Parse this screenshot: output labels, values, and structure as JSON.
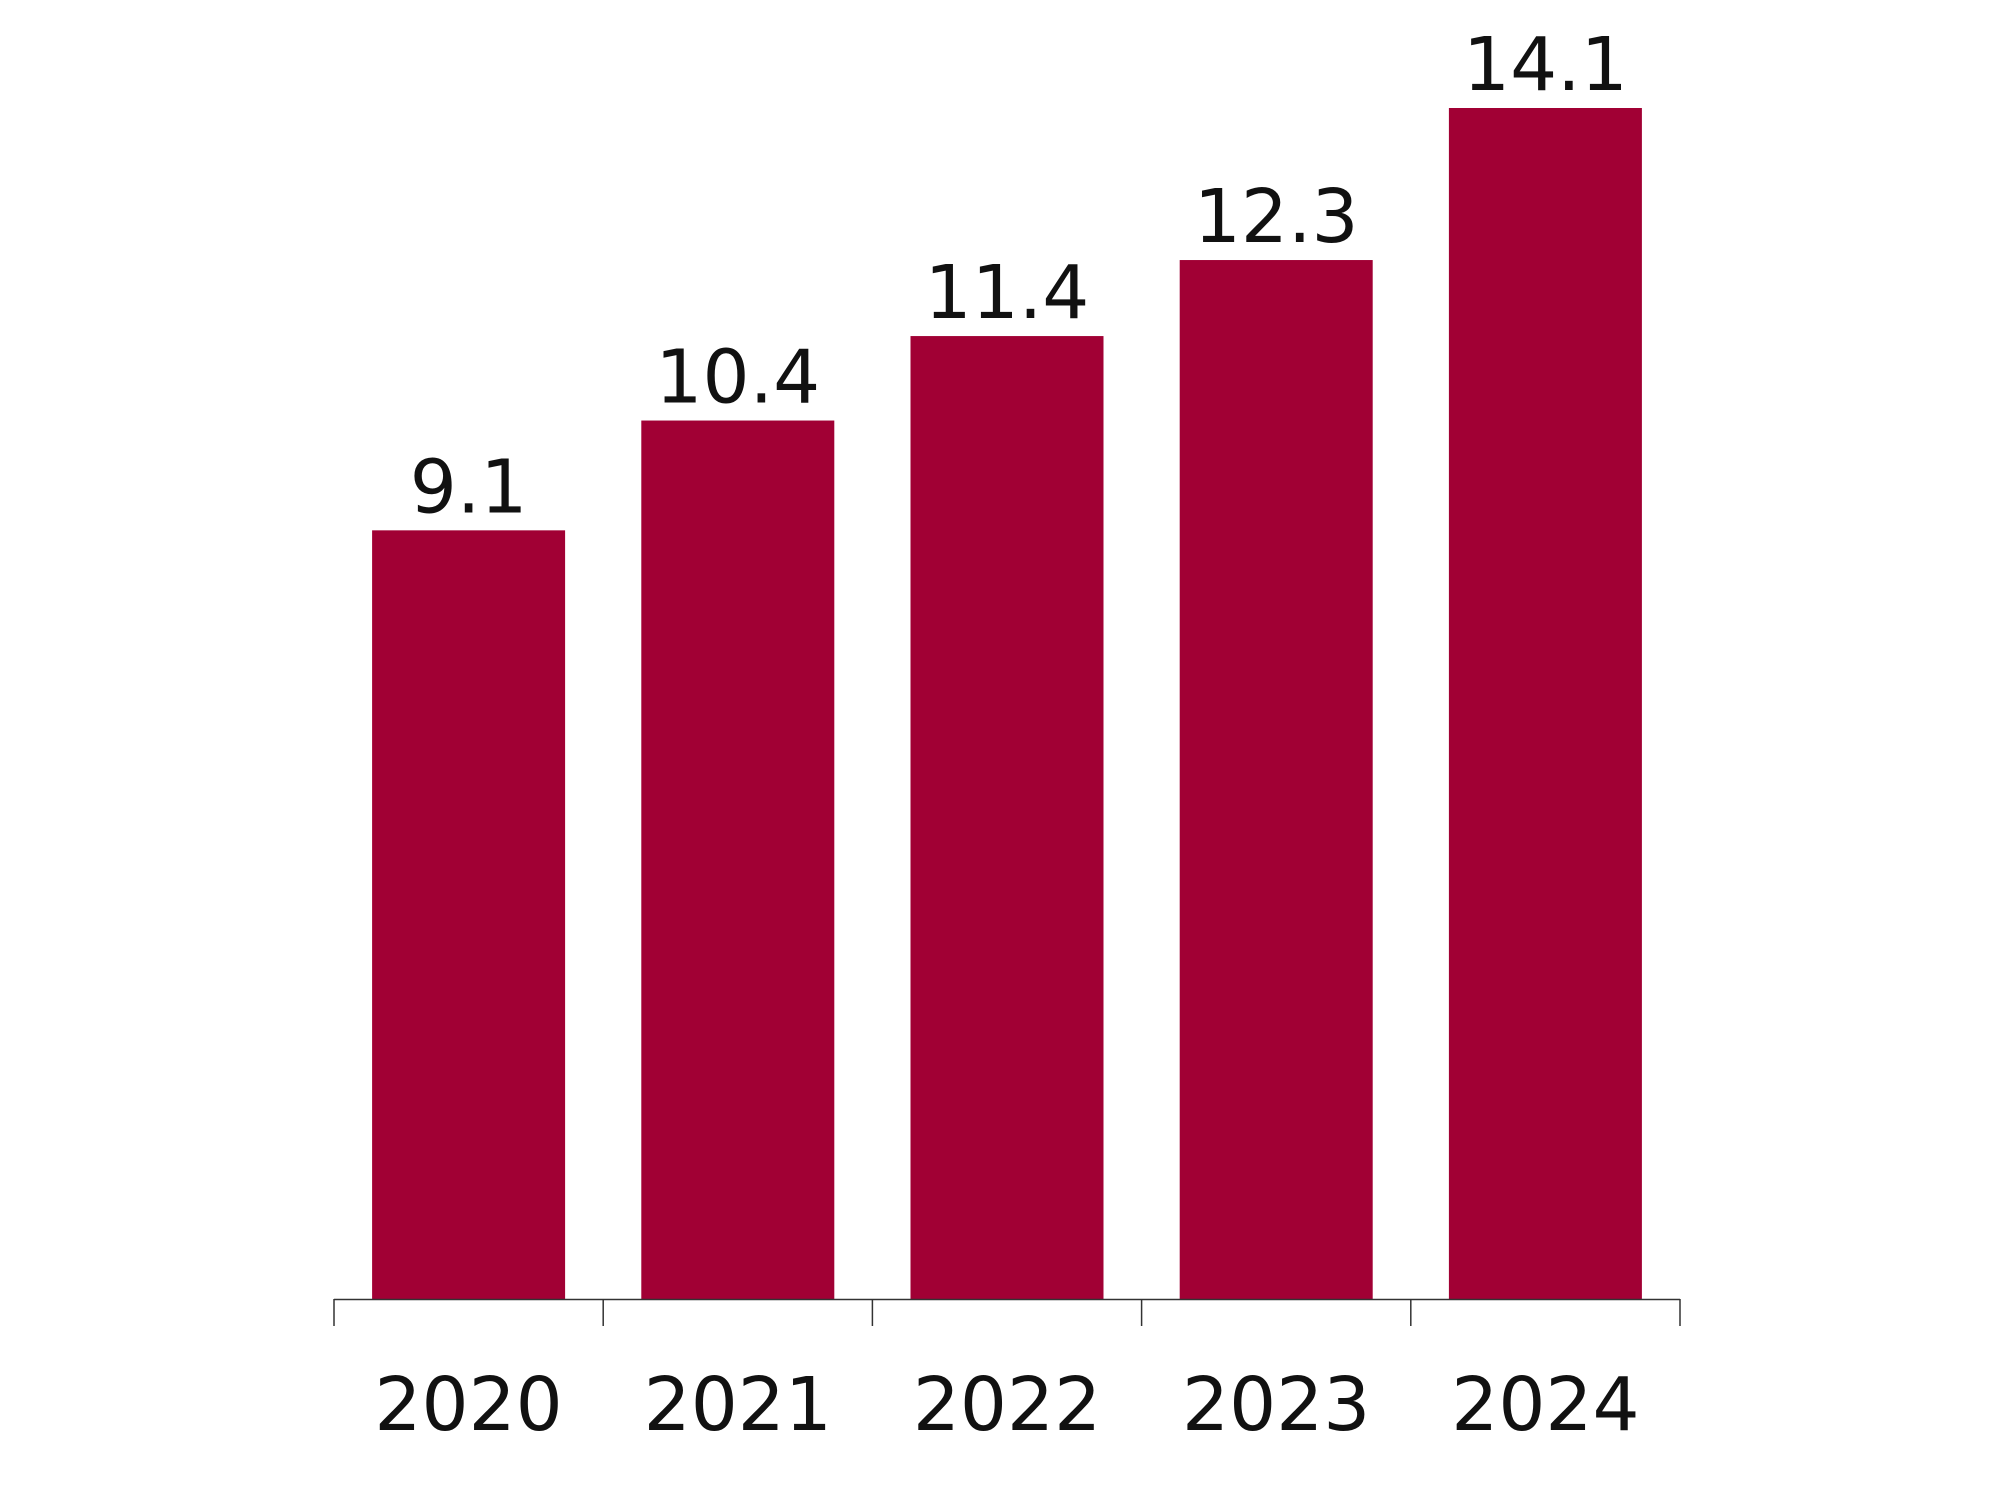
{
  "colors": {
    "bar": "#a10034",
    "text": "#111111",
    "axis": "#333333",
    "background": "#ffffff"
  },
  "chart_data": {
    "type": "bar",
    "categories": [
      "2020",
      "2021",
      "2022",
      "2023",
      "2024"
    ],
    "values": [
      9.1,
      10.4,
      11.4,
      12.3,
      14.1
    ],
    "value_labels": [
      "9.1",
      "10.4",
      "11.4",
      "12.3",
      "14.1"
    ],
    "title": "",
    "xlabel": "",
    "ylabel": "",
    "ylim": [
      0,
      14.1
    ],
    "grid": false,
    "legend": "none",
    "y_axis_visible": false
  }
}
